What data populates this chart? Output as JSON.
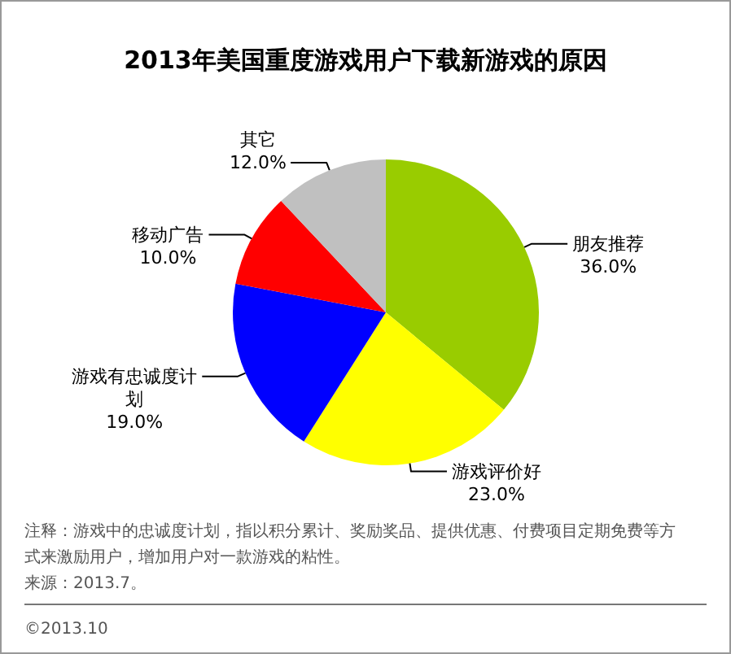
{
  "chart_data": {
    "type": "pie",
    "title": "2013年美国重度游戏用户下载新游戏的原因",
    "categories": [
      "朋友推荐",
      "游戏评价好",
      "游戏有忠诚度计划",
      "移动广告",
      "其它"
    ],
    "values": [
      36,
      23,
      19,
      10,
      12
    ],
    "value_labels": [
      "36.0%",
      "23.0%",
      "19.0%",
      "10.0%",
      "12.0%"
    ],
    "colors": [
      "#99cc00",
      "#ffff00",
      "#0000ff",
      "#ff0000",
      "#c0c0c0"
    ],
    "annotations": [
      "注释：游戏中的忠诚度计划，指以积分累计、奖励奖品、提供优惠、付费项目定期免费等方式来激励用户，增加用户对一款游戏的粘性。",
      "来源：2013.7。",
      "©2013.10"
    ]
  }
}
